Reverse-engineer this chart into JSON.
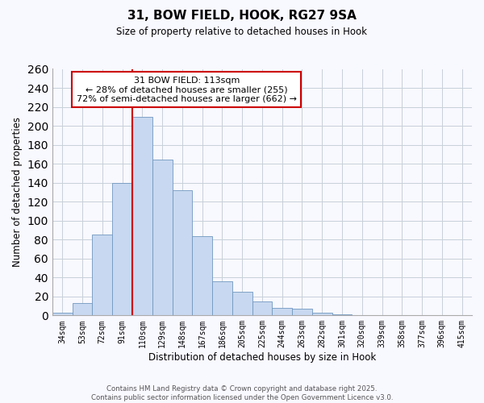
{
  "title": "31, BOW FIELD, HOOK, RG27 9SA",
  "subtitle": "Size of property relative to detached houses in Hook",
  "xlabel": "Distribution of detached houses by size in Hook",
  "ylabel": "Number of detached properties",
  "categories": [
    "34sqm",
    "53sqm",
    "72sqm",
    "91sqm",
    "110sqm",
    "129sqm",
    "148sqm",
    "167sqm",
    "186sqm",
    "205sqm",
    "225sqm",
    "244sqm",
    "263sqm",
    "282sqm",
    "301sqm",
    "320sqm",
    "339sqm",
    "358sqm",
    "377sqm",
    "396sqm",
    "415sqm"
  ],
  "values": [
    3,
    13,
    85,
    140,
    209,
    164,
    132,
    84,
    36,
    25,
    15,
    8,
    7,
    3,
    1,
    0,
    0,
    0,
    0,
    0,
    0
  ],
  "bar_color": "#c8d8f0",
  "bar_edge_color": "#7098c0",
  "grid_color": "#c8d0d8",
  "background_color": "#f8f8ff",
  "vline_x_index": 4,
  "vline_color": "#cc0000",
  "annotation_title": "31 BOW FIELD: 113sqm",
  "annotation_line1": "← 28% of detached houses are smaller (255)",
  "annotation_line2": "72% of semi-detached houses are larger (662) →",
  "annotation_box_color": "#ffffff",
  "annotation_box_edge": "#cc0000",
  "ylim": [
    0,
    260
  ],
  "yticks": [
    0,
    20,
    40,
    60,
    80,
    100,
    120,
    140,
    160,
    180,
    200,
    220,
    240,
    260
  ],
  "footer1": "Contains HM Land Registry data © Crown copyright and database right 2025.",
  "footer2": "Contains public sector information licensed under the Open Government Licence v3.0."
}
